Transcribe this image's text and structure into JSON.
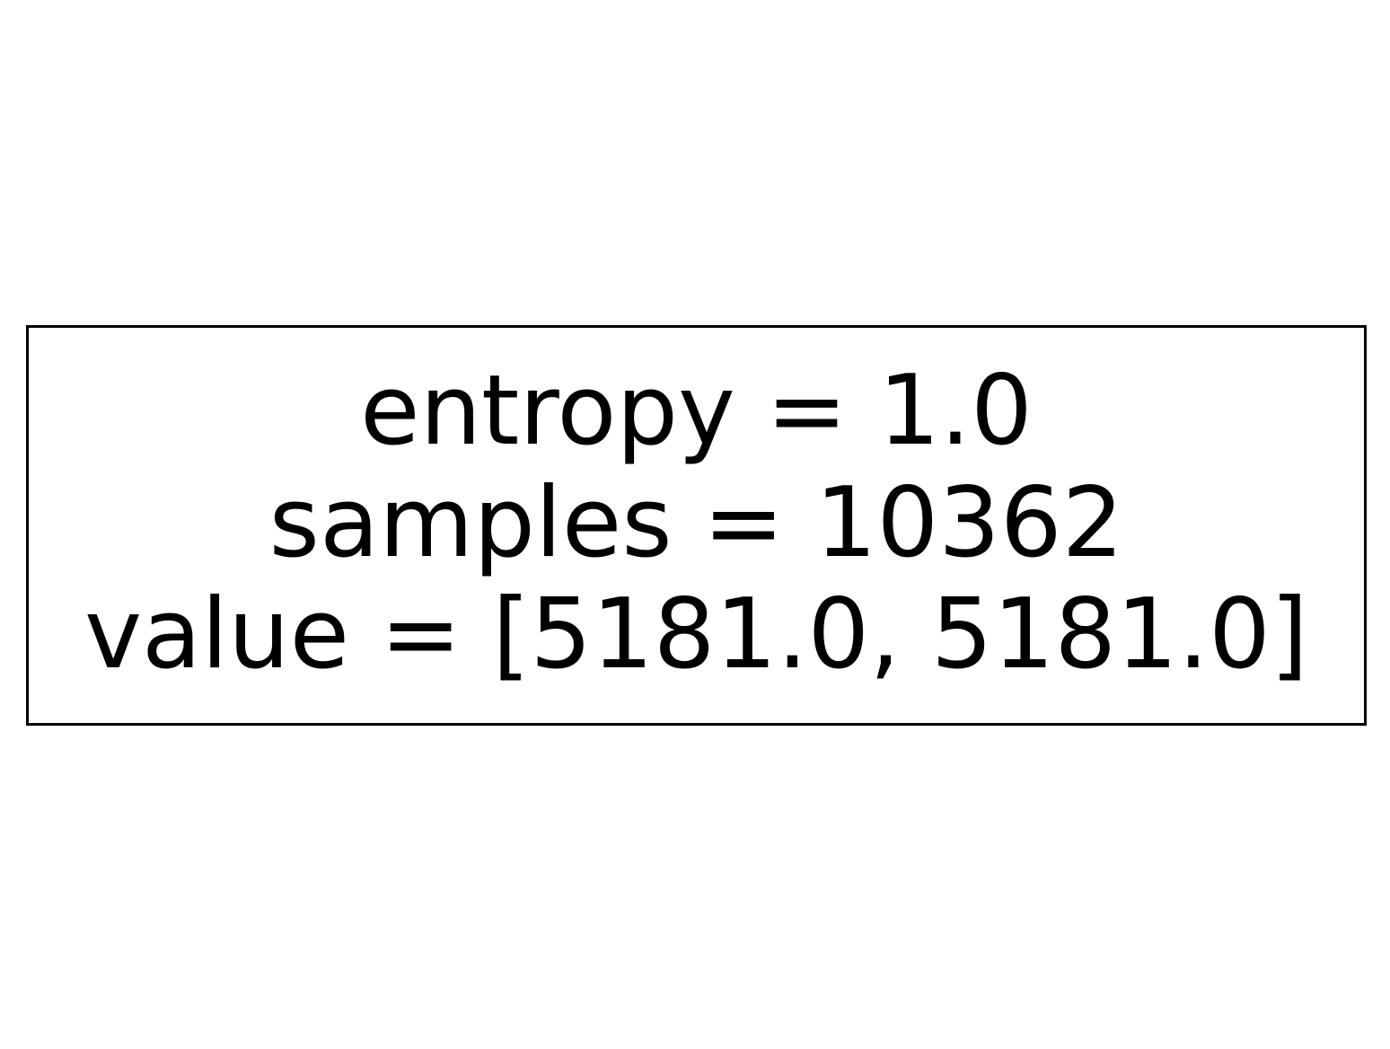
{
  "tree": {
    "root_node": {
      "entropy_text": "entropy = 1.0",
      "samples_text": "samples = 10362",
      "value_text": "value = [5181.0, 5181.0]",
      "entropy": 1.0,
      "samples": 10362,
      "value": [
        5181.0,
        5181.0
      ]
    },
    "colors": {
      "background": "#ffffff",
      "border": "#000000",
      "text": "#000000"
    }
  }
}
